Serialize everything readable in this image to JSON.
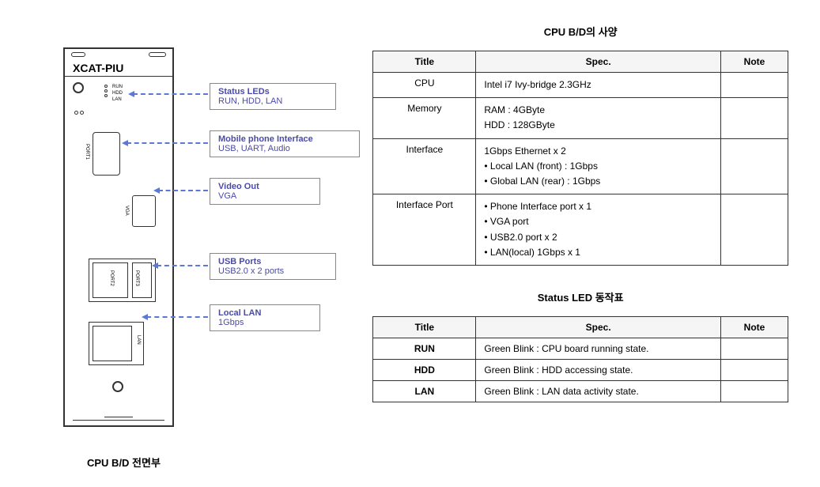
{
  "board": {
    "label": "XCAT-PIU",
    "led_names": "RUN\nHDD\nLAN",
    "port1_label": "PORT1",
    "vga_label": "VGA",
    "usb_label1": "PORT2",
    "usb_label2": "PORT3",
    "lan_label": "LAN"
  },
  "callouts": [
    {
      "title": "Status LEDs",
      "desc": "RUN, HDD, LAN"
    },
    {
      "title": "Mobile phone Interface",
      "desc": "USB, UART, Audio"
    },
    {
      "title": "Video Out",
      "desc": "VGA"
    },
    {
      "title": "USB Ports",
      "desc": "USB2.0 x 2 ports"
    },
    {
      "title": "Local LAN",
      "desc": "1Gbps"
    }
  ],
  "left_caption": "CPU B/D 전면부",
  "spec_table": {
    "title": "CPU B/D의 사양",
    "columns": [
      "Title",
      "Spec.",
      "Note"
    ],
    "rows": [
      {
        "title": "CPU",
        "spec": "Intel i7 Ivy-bridge 2.3GHz",
        "note": ""
      },
      {
        "title": "Memory",
        "spec": "RAM : 4GByte\nHDD : 128GByte",
        "note": ""
      },
      {
        "title": "Interface",
        "spec": "1Gbps Ethernet x 2\n• Local LAN (front) : 1Gbps\n• Global LAN (rear)  : 1Gbps",
        "note": ""
      },
      {
        "title": "Interface Port",
        "spec": "• Phone Interface port x 1\n• VGA port\n• USB2.0 port x 2\n• LAN(local) 1Gbps x 1",
        "note": ""
      }
    ]
  },
  "led_table": {
    "title": "Status LED 동작표",
    "columns": [
      "Title",
      "Spec.",
      "Note"
    ],
    "rows": [
      {
        "title": "RUN",
        "spec": "Green Blink : CPU board running state.",
        "note": ""
      },
      {
        "title": "HDD",
        "spec": "Green Blink : HDD accessing state.",
        "note": ""
      },
      {
        "title": "LAN",
        "spec": "Green Blink : LAN data activity state.",
        "note": ""
      }
    ]
  },
  "colors": {
    "callout_text": "#4a4aa8",
    "arrow": "#5b78d6",
    "border": "#333333",
    "table_header_bg": "#f5f5f5"
  }
}
